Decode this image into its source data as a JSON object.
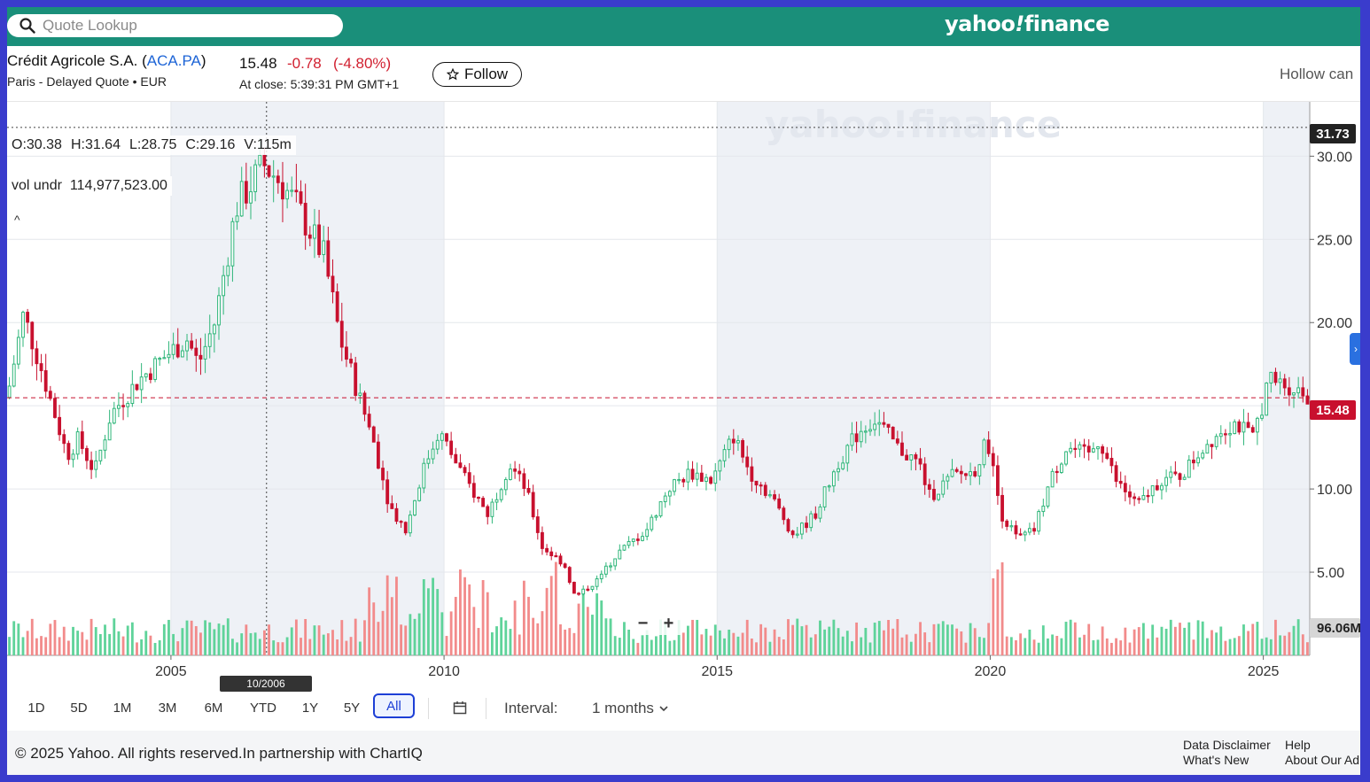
{
  "search": {
    "placeholder": "Quote Lookup"
  },
  "brand": {
    "logo_text": "yahoo!finance"
  },
  "quote": {
    "name": "Crédit Agricole S.A.",
    "ticker": "ACA.PA",
    "exchange_line": "Paris - Delayed Quote • EUR",
    "price": "15.48",
    "change": "-0.78",
    "change_pct": "(-4.80%)",
    "at_close": "At close: 5:39:31 PM GMT+1",
    "follow_label": "Follow",
    "chart_type_label": "Hollow can"
  },
  "chart": {
    "ohlc": {
      "open": "O:30.38",
      "high": "H:31.64",
      "low": "L:28.75",
      "close": "C:29.16",
      "volume": "V:115m"
    },
    "vol_under": {
      "label": "vol undr",
      "value": "114,977,523.00"
    },
    "crosshair_price": "31.73",
    "current_price_label": "15.48",
    "volume_label": "96.06M",
    "date_tag": "10/2006",
    "y_ticks": [
      "30.00",
      "25.00",
      "20.00",
      "10.00",
      "5.00"
    ],
    "x_ticks": [
      "2005",
      "2010",
      "2015",
      "2020",
      "2025"
    ],
    "colors": {
      "up": "#2fb67a",
      "down": "#c8102e",
      "vol_up": "#5fd39a",
      "vol_down": "#f28b8b",
      "band": "#eef1f6"
    }
  },
  "chart_data": {
    "type": "candlestick",
    "interval": "1 months",
    "ylim": [
      0,
      33
    ],
    "x_range": [
      2002.0,
      2025.85
    ],
    "yaxis_ticks": [
      5,
      10,
      15,
      20,
      25,
      30
    ],
    "last_price": 15.48,
    "crosshair": {
      "date": "10/2006",
      "price": 31.73
    },
    "series": [
      {
        "name": "price",
        "anchors": [
          [
            2002.0,
            15.5
          ],
          [
            2002.3,
            20.5
          ],
          [
            2002.6,
            17.5
          ],
          [
            2003.1,
            12.0
          ],
          [
            2003.3,
            13.0
          ],
          [
            2003.6,
            11.0
          ],
          [
            2003.9,
            14.5
          ],
          [
            2004.4,
            16.5
          ],
          [
            2004.9,
            18.0
          ],
          [
            2005.3,
            19.0
          ],
          [
            2005.5,
            17.5
          ],
          [
            2005.8,
            20.0
          ],
          [
            2006.2,
            27.0
          ],
          [
            2006.7,
            29.5
          ],
          [
            2007.0,
            28.5
          ],
          [
            2007.3,
            27.0
          ],
          [
            2007.8,
            24.0
          ],
          [
            2008.1,
            19.0
          ],
          [
            2008.4,
            16.0
          ],
          [
            2008.7,
            13.0
          ],
          [
            2009.0,
            9.0
          ],
          [
            2009.3,
            7.5
          ],
          [
            2009.6,
            11.0
          ],
          [
            2009.9,
            13.5
          ],
          [
            2010.4,
            10.5
          ],
          [
            2010.8,
            8.5
          ],
          [
            2011.2,
            11.5
          ],
          [
            2011.5,
            10.0
          ],
          [
            2011.8,
            6.5
          ],
          [
            2012.2,
            5.5
          ],
          [
            2012.4,
            3.5
          ],
          [
            2012.8,
            4.5
          ],
          [
            2013.2,
            6.2
          ],
          [
            2013.7,
            7.5
          ],
          [
            2014.1,
            10.0
          ],
          [
            2014.5,
            11.0
          ],
          [
            2014.9,
            10.5
          ],
          [
            2015.3,
            13.2
          ],
          [
            2015.6,
            11.0
          ],
          [
            2016.0,
            9.5
          ],
          [
            2016.4,
            7.2
          ],
          [
            2016.8,
            8.5
          ],
          [
            2017.2,
            11.5
          ],
          [
            2017.6,
            13.5
          ],
          [
            2017.9,
            14.2
          ],
          [
            2018.3,
            12.5
          ],
          [
            2018.7,
            11.5
          ],
          [
            2018.9,
            9.5
          ],
          [
            2019.3,
            10.8
          ],
          [
            2019.7,
            11.0
          ],
          [
            2019.95,
            13.0
          ],
          [
            2020.2,
            8.5
          ],
          [
            2020.5,
            7.0
          ],
          [
            2020.8,
            7.5
          ],
          [
            2021.1,
            10.5
          ],
          [
            2021.4,
            12.5
          ],
          [
            2021.8,
            12.0
          ],
          [
            2022.0,
            13.0
          ],
          [
            2022.3,
            10.5
          ],
          [
            2022.7,
            9.0
          ],
          [
            2023.1,
            10.5
          ],
          [
            2023.5,
            10.8
          ],
          [
            2023.9,
            12.5
          ],
          [
            2024.2,
            13.5
          ],
          [
            2024.5,
            14.0
          ],
          [
            2024.8,
            13.0
          ],
          [
            2025.1,
            16.5
          ],
          [
            2025.5,
            16.2
          ],
          [
            2025.85,
            15.5
          ]
        ]
      }
    ]
  },
  "ranges": {
    "items": [
      "1D",
      "5D",
      "1M",
      "3M",
      "6M",
      "YTD",
      "1Y",
      "5Y",
      "All"
    ],
    "active": "All",
    "interval_label": "Interval:",
    "interval_value": "1 months"
  },
  "footer": {
    "copyright": "© 2025 Yahoo. All rights reserved.In partnership with ChartIQ",
    "links": [
      "Data Disclaimer",
      "What's New",
      "Help",
      "About Our Ad"
    ]
  }
}
